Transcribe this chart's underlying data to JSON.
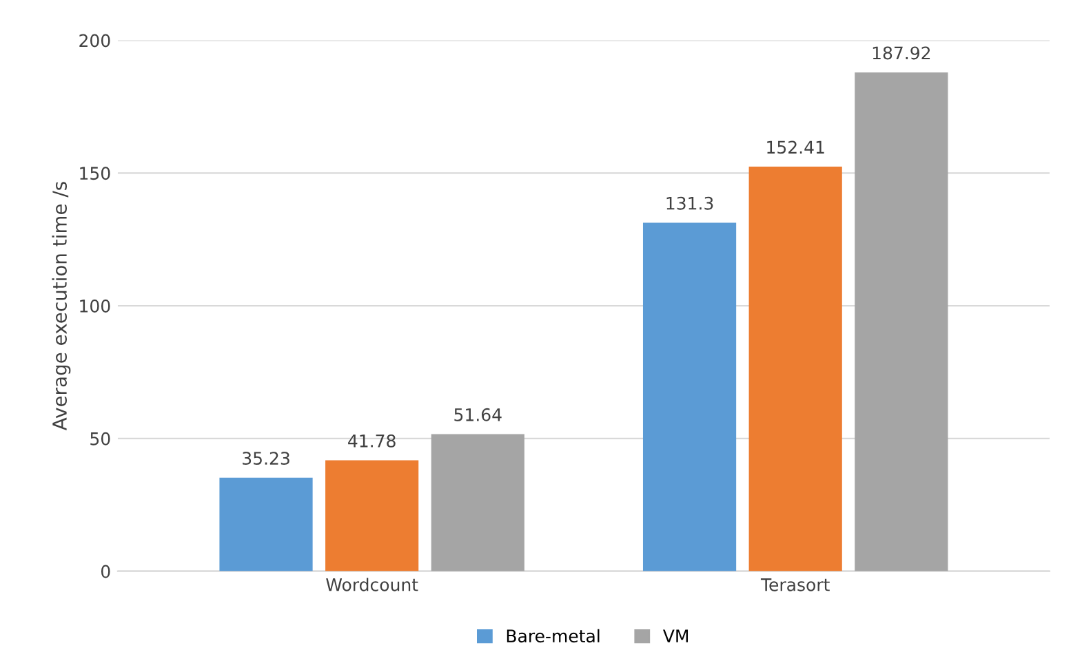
{
  "chart_data": {
    "type": "bar",
    "ylabel": "Average execution time /s",
    "categories": [
      "Wordcount",
      "Terasort"
    ],
    "series": [
      {
        "name": "Bare-metal",
        "color": "#5b9bd5",
        "values": [
          35.23,
          131.3
        ]
      },
      {
        "color": "#ed7d31",
        "values": [
          41.78,
          152.41
        ]
      },
      {
        "name": "VM",
        "color": "#a5a5a5",
        "values": [
          51.64,
          187.92
        ]
      }
    ],
    "ylim": [
      0,
      200
    ],
    "yticks": [
      0,
      50,
      100,
      150,
      200
    ],
    "grid": "y",
    "legend": "bottom",
    "data_labels": true
  }
}
